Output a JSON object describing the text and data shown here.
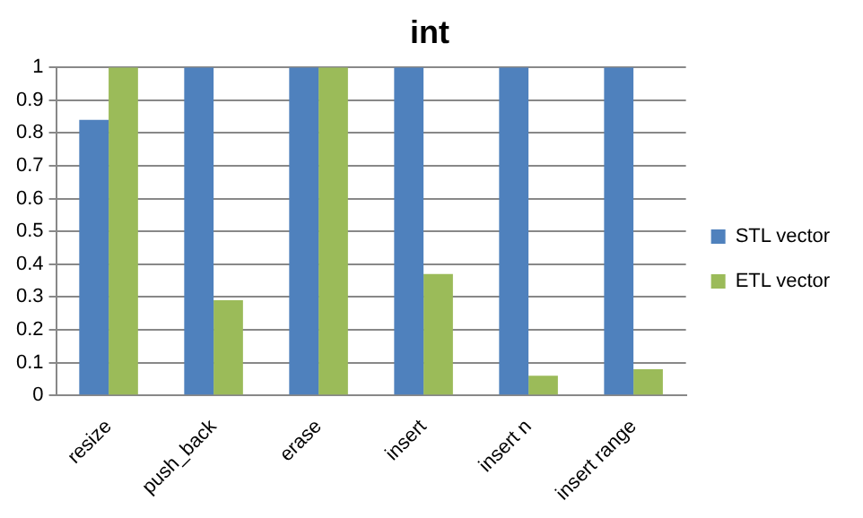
{
  "chart_data": {
    "type": "bar",
    "title": "int",
    "categories": [
      "resize",
      "push_back",
      "erase",
      "insert",
      "insert n",
      "insert range"
    ],
    "series": [
      {
        "name": "STL vector",
        "color": "#4f81bd",
        "values": [
          0.84,
          1,
          1,
          1,
          1,
          1
        ]
      },
      {
        "name": "ETL vector",
        "color": "#9bbb59",
        "values": [
          1,
          0.29,
          1,
          0.37,
          0.06,
          0.08
        ]
      }
    ],
    "ylim": [
      0,
      1
    ],
    "yticks": [
      0,
      0.1,
      0.2,
      0.3,
      0.4,
      0.5,
      0.6,
      0.7,
      0.8,
      0.9,
      1
    ],
    "grid": "y",
    "legend": "right"
  }
}
